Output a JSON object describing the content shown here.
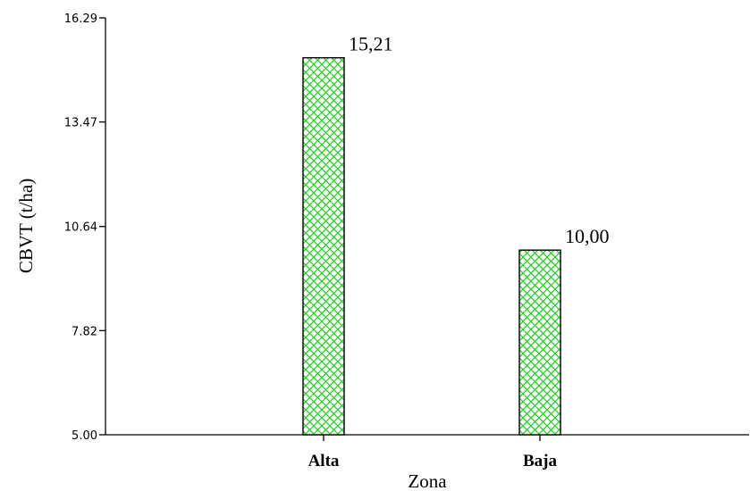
{
  "chart_data": {
    "type": "bar",
    "categories": [
      "Alta",
      "Baja"
    ],
    "values": [
      15.21,
      10.0
    ],
    "data_labels": [
      "15,21",
      "10,00"
    ],
    "xlabel": "Zona",
    "ylabel": "CBVT (t/ha)",
    "ylim": [
      5.0,
      16.29
    ],
    "yticks": [
      5.0,
      7.82,
      10.64,
      13.47,
      16.29
    ],
    "ytick_labels": [
      "5.00",
      "7.82",
      "10.64",
      "13.47",
      "16.29"
    ],
    "grid": false,
    "bar_fill": "#22cc22",
    "bar_pattern": "crosshatch"
  }
}
